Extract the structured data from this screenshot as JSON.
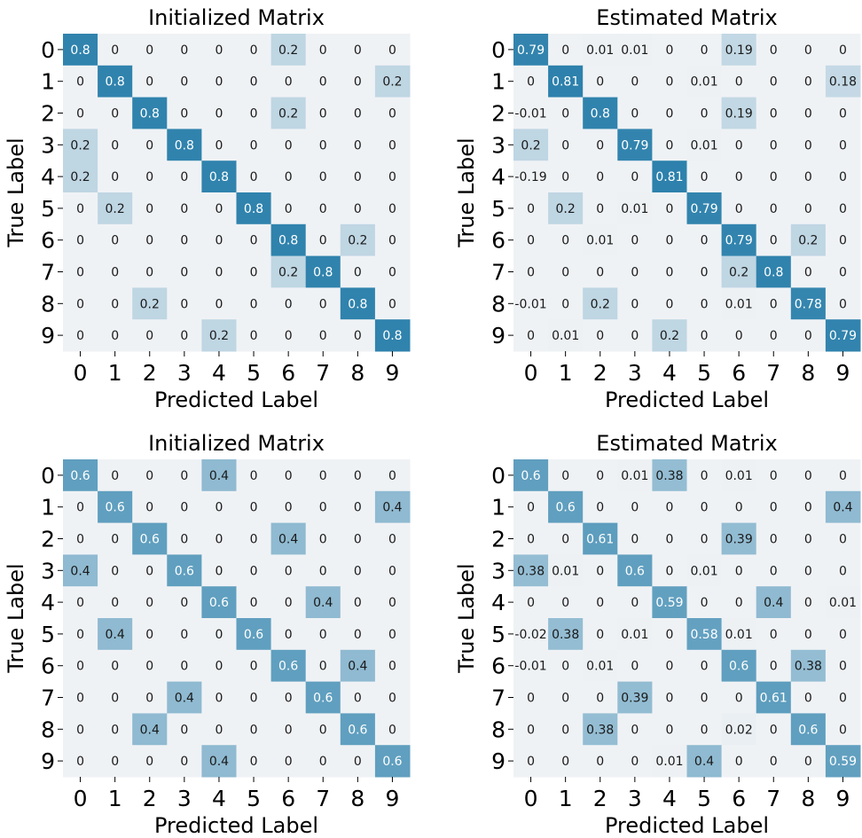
{
  "chart_data": [
    {
      "type": "heatmap",
      "title": "Initialized Matrix",
      "xlabel": "Predicted Label",
      "ylabel": "True Label",
      "x_ticks": [
        "0",
        "1",
        "2",
        "3",
        "4",
        "5",
        "6",
        "7",
        "8",
        "9"
      ],
      "y_ticks": [
        "0",
        "1",
        "2",
        "3",
        "4",
        "5",
        "6",
        "7",
        "8",
        "9"
      ],
      "value_range": [
        0,
        1
      ],
      "values": [
        [
          0.8,
          0,
          0,
          0,
          0,
          0,
          0.2,
          0,
          0,
          0
        ],
        [
          0,
          0.8,
          0,
          0,
          0,
          0,
          0,
          0,
          0,
          0.2
        ],
        [
          0,
          0,
          0.8,
          0,
          0,
          0,
          0.2,
          0,
          0,
          0
        ],
        [
          0.2,
          0,
          0,
          0.8,
          0,
          0,
          0,
          0,
          0,
          0
        ],
        [
          0.2,
          0,
          0,
          0,
          0.8,
          0,
          0,
          0,
          0,
          0
        ],
        [
          0,
          0.2,
          0,
          0,
          0,
          0.8,
          0,
          0,
          0,
          0
        ],
        [
          0,
          0,
          0,
          0,
          0,
          0,
          0.8,
          0,
          0.2,
          0
        ],
        [
          0,
          0,
          0,
          0,
          0,
          0,
          0.2,
          0.8,
          0,
          0
        ],
        [
          0,
          0,
          0.2,
          0,
          0,
          0,
          0,
          0,
          0.8,
          0
        ],
        [
          0,
          0,
          0,
          0,
          0.2,
          0,
          0,
          0,
          0,
          0.8
        ]
      ]
    },
    {
      "type": "heatmap",
      "title": "Estimated Matrix",
      "xlabel": "Predicted Label",
      "ylabel": "True Label",
      "x_ticks": [
        "0",
        "1",
        "2",
        "3",
        "4",
        "5",
        "6",
        "7",
        "8",
        "9"
      ],
      "y_ticks": [
        "0",
        "1",
        "2",
        "3",
        "4",
        "5",
        "6",
        "7",
        "8",
        "9"
      ],
      "value_range": [
        0,
        1
      ],
      "values": [
        [
          0.79,
          0,
          0.01,
          0.01,
          0,
          0,
          0.19,
          0,
          0,
          0
        ],
        [
          0,
          0.81,
          0,
          0,
          0,
          0.01,
          0,
          0,
          0,
          0.18
        ],
        [
          -0.01,
          0,
          0.8,
          0,
          0,
          0,
          0.19,
          0,
          0,
          0
        ],
        [
          0.2,
          0,
          0,
          0.79,
          0,
          0.01,
          0,
          0,
          0,
          0
        ],
        [
          -0.19,
          0,
          0,
          0,
          0.81,
          0,
          0,
          0,
          0,
          0
        ],
        [
          0,
          0.2,
          0,
          0.01,
          0,
          0.79,
          0,
          0,
          0,
          0
        ],
        [
          0,
          0,
          0.01,
          0,
          0,
          0,
          0.79,
          0,
          0.2,
          0
        ],
        [
          0,
          0,
          0,
          0,
          0,
          0,
          0.2,
          0.8,
          0,
          0
        ],
        [
          -0.01,
          0,
          0.2,
          0,
          0,
          0,
          0.01,
          0,
          0.78,
          0
        ],
        [
          0,
          0.01,
          0,
          0,
          0.2,
          0,
          0,
          0,
          0,
          0.79
        ]
      ]
    },
    {
      "type": "heatmap",
      "title": "Initialized Matrix",
      "xlabel": "Predicted Label",
      "ylabel": "True Label",
      "x_ticks": [
        "0",
        "1",
        "2",
        "3",
        "4",
        "5",
        "6",
        "7",
        "8",
        "9"
      ],
      "y_ticks": [
        "0",
        "1",
        "2",
        "3",
        "4",
        "5",
        "6",
        "7",
        "8",
        "9"
      ],
      "value_range": [
        0,
        1
      ],
      "values": [
        [
          0.6,
          0,
          0,
          0,
          0.4,
          0,
          0,
          0,
          0,
          0
        ],
        [
          0,
          0.6,
          0,
          0,
          0,
          0,
          0,
          0,
          0,
          0.4
        ],
        [
          0,
          0,
          0.6,
          0,
          0,
          0,
          0.4,
          0,
          0,
          0
        ],
        [
          0.4,
          0,
          0,
          0.6,
          0,
          0,
          0,
          0,
          0,
          0
        ],
        [
          0,
          0,
          0,
          0,
          0.6,
          0,
          0,
          0.4,
          0,
          0
        ],
        [
          0,
          0.4,
          0,
          0,
          0,
          0.6,
          0,
          0,
          0,
          0
        ],
        [
          0,
          0,
          0,
          0,
          0,
          0,
          0.6,
          0,
          0.4,
          0
        ],
        [
          0,
          0,
          0,
          0.4,
          0,
          0,
          0,
          0.6,
          0,
          0
        ],
        [
          0,
          0,
          0.4,
          0,
          0,
          0,
          0,
          0,
          0.6,
          0
        ],
        [
          0,
          0,
          0,
          0,
          0.4,
          0,
          0,
          0,
          0,
          0.6
        ]
      ]
    },
    {
      "type": "heatmap",
      "title": "Estimated Matrix",
      "xlabel": "Predicted Label",
      "ylabel": "True Label",
      "x_ticks": [
        "0",
        "1",
        "2",
        "3",
        "4",
        "5",
        "6",
        "7",
        "8",
        "9"
      ],
      "y_ticks": [
        "0",
        "1",
        "2",
        "3",
        "4",
        "5",
        "6",
        "7",
        "8",
        "9"
      ],
      "value_range": [
        0,
        1
      ],
      "values": [
        [
          0.6,
          0,
          0,
          0.01,
          0.38,
          0,
          0.01,
          0,
          0,
          0
        ],
        [
          0,
          0.6,
          0,
          0,
          0,
          0,
          0,
          0,
          0,
          0.4
        ],
        [
          0,
          0,
          0.61,
          0,
          0,
          0,
          0.39,
          0,
          0,
          0
        ],
        [
          0.38,
          0.01,
          0,
          0.6,
          0,
          0.01,
          0,
          0,
          0,
          0
        ],
        [
          0,
          0,
          0,
          0,
          0.59,
          0,
          0,
          0.4,
          0,
          0.01
        ],
        [
          -0.02,
          0.38,
          0,
          0.01,
          0,
          0.58,
          0.01,
          0,
          0,
          0
        ],
        [
          -0.01,
          0,
          0.01,
          0,
          0,
          0,
          0.6,
          0,
          0.38,
          0
        ],
        [
          0,
          0,
          0,
          0.39,
          0,
          0,
          0,
          0.61,
          0,
          0
        ],
        [
          0,
          0,
          0.38,
          0,
          0,
          0,
          0.02,
          0,
          0.6,
          0
        ],
        [
          0,
          0,
          0,
          0,
          0.01,
          0.4,
          0,
          0,
          0,
          0.59
        ]
      ]
    }
  ],
  "colors": {
    "low": "#eff2f5",
    "high": "#00679b",
    "text_dark": "#1a1a1a",
    "text_light": "#ffffff"
  }
}
